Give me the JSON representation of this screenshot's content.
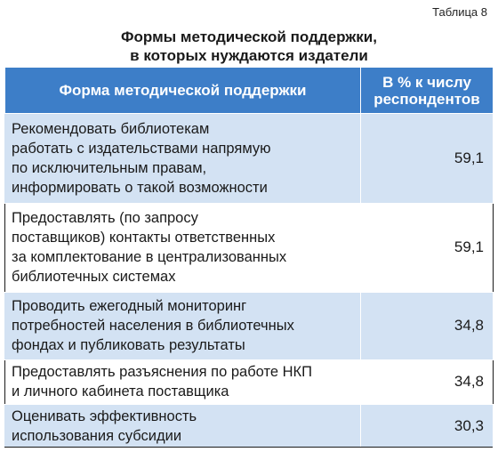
{
  "table_number": "Таблица 8",
  "title": {
    "line1": "Формы методической поддержки,",
    "line2": "в которых нуждаются издатели"
  },
  "header": {
    "col1": "Форма методической поддержки",
    "col2_line1": "В % к числу",
    "col2_line2": "респондентов"
  },
  "rows": [
    {
      "lines": [
        "Рекомендовать библиотекам",
        "работать с издательствами напрямую",
        "по исключительным правам,",
        "информировать о такой возможности"
      ],
      "value": "59,1"
    },
    {
      "lines": [
        "Предоставлять (по запросу",
        "поставщиков) контакты ответственных",
        "за комплектование в централизованных",
        "библиотечных системах"
      ],
      "value": "59,1"
    },
    {
      "lines": [
        "Проводить ежегодный мониторинг",
        "потребностей населения в библиотечных",
        "фондах и публиковать результаты"
      ],
      "value": "34,8"
    },
    {
      "lines": [
        "Предоставлять разъяснения по работе НКП",
        "и личного кабинета поставщика"
      ],
      "value": "34,8"
    },
    {
      "lines": [
        "Оценивать эффективность",
        "использования субсидии"
      ],
      "value": "30,3"
    }
  ],
  "colors": {
    "header_bg": "#3d7ec8",
    "shaded_row_bg": "#d3e2f3"
  }
}
